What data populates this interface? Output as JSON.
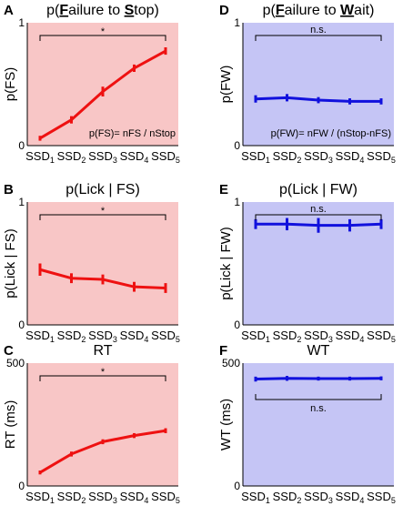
{
  "chart_data": [
    {
      "type": "line",
      "panel": "A",
      "color": "#ee1111",
      "background": "#f8c6c6",
      "title": "p(Failure to Stop)",
      "title_underlined_letters": [
        "F",
        "S"
      ],
      "ylabel": "p(FS)",
      "ylim": [
        0,
        1
      ],
      "yticks": [
        "0",
        "1"
      ],
      "categories": [
        "SSD1",
        "SSD2",
        "SSD3",
        "SSD4",
        "SSD5"
      ],
      "values": [
        0.06,
        0.21,
        0.44,
        0.63,
        0.77
      ],
      "errors": [
        0.02,
        0.03,
        0.04,
        0.03,
        0.03
      ],
      "annotation": "p(FS)= nFS / nStop",
      "significance": "*",
      "significance_position": "top"
    },
    {
      "type": "line",
      "panel": "D",
      "color": "#1111dd",
      "background": "#c5c5f5",
      "title": "p(Failure to Wait)",
      "title_underlined_letters": [
        "F",
        "W"
      ],
      "ylabel": "p(FW)",
      "ylim": [
        0,
        1
      ],
      "yticks": [
        "0",
        "1"
      ],
      "categories": [
        "SSD1",
        "SSD2",
        "SSD3",
        "SSD4",
        "SSD5"
      ],
      "values": [
        0.38,
        0.39,
        0.37,
        0.36,
        0.36
      ],
      "errors": [
        0.03,
        0.03,
        0.025,
        0.025,
        0.025
      ],
      "annotation": "p(FW)= nFW / (nStop-nFS)",
      "significance": "n.s.",
      "significance_position": "top"
    },
    {
      "type": "line",
      "panel": "B",
      "color": "#ee1111",
      "background": "#f8c6c6",
      "title": "p(Lick | FS)",
      "ylabel": "p(Lick | FS)",
      "ylim": [
        0,
        1
      ],
      "yticks": [
        "0",
        "1"
      ],
      "categories": [
        "SSD1",
        "SSD2",
        "SSD3",
        "SSD4",
        "SSD5"
      ],
      "values": [
        0.45,
        0.38,
        0.37,
        0.31,
        0.3
      ],
      "errors": [
        0.05,
        0.04,
        0.04,
        0.04,
        0.04
      ],
      "significance": "*",
      "significance_position": "top"
    },
    {
      "type": "line",
      "panel": "E",
      "color": "#1111dd",
      "background": "#c5c5f5",
      "title": "p(Lick | FW)",
      "ylabel": "p(Lick | FW)",
      "ylim": [
        0,
        1
      ],
      "yticks": [
        "0",
        "1"
      ],
      "categories": [
        "SSD1",
        "SSD2",
        "SSD3",
        "SSD4",
        "SSD5"
      ],
      "values": [
        0.82,
        0.82,
        0.81,
        0.81,
        0.82
      ],
      "errors": [
        0.04,
        0.05,
        0.06,
        0.05,
        0.04
      ],
      "significance": "n.s.",
      "significance_position": "top"
    },
    {
      "type": "line",
      "panel": "C",
      "color": "#ee1111",
      "background": "#f8c6c6",
      "title": "RT",
      "ylabel": "RT (ms)",
      "ylim": [
        0,
        500
      ],
      "yticks": [
        "0",
        "500"
      ],
      "categories": [
        "SSD1",
        "SSD2",
        "SSD3",
        "SSD4",
        "SSD5"
      ],
      "values": [
        55,
        130,
        180,
        205,
        225
      ],
      "errors": [
        8,
        10,
        10,
        10,
        10
      ],
      "significance": "*",
      "significance_position": "top"
    },
    {
      "type": "line",
      "panel": "F",
      "color": "#1111dd",
      "background": "#c5c5f5",
      "title": "WT",
      "ylabel": "WT (ms)",
      "ylim": [
        0,
        500
      ],
      "yticks": [
        "0",
        "500"
      ],
      "categories": [
        "SSD1",
        "SSD2",
        "SSD3",
        "SSD4",
        "SSD5"
      ],
      "values": [
        435,
        438,
        437,
        437,
        438
      ],
      "errors": [
        10,
        10,
        8,
        8,
        8
      ],
      "significance": "n.s.",
      "significance_position": "below-line"
    }
  ]
}
